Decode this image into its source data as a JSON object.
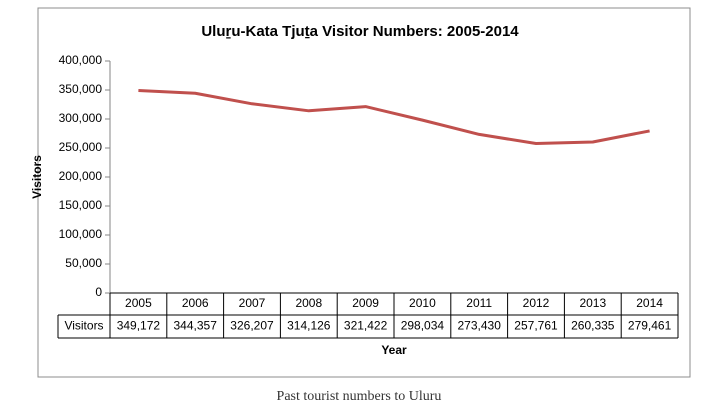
{
  "chart_data": {
    "type": "line",
    "title": "Uluṟu-Kata Tjuṯa Visitor Numbers: 2005-2014",
    "x_label": "Year",
    "y_label": "Visitors",
    "categories": [
      "2005",
      "2006",
      "2007",
      "2008",
      "2009",
      "2010",
      "2011",
      "2012",
      "2013",
      "2014"
    ],
    "series": [
      {
        "name": "Visitors",
        "color": "#c0504d",
        "values": [
          349172,
          344357,
          326207,
          314126,
          321422,
          298034,
          273430,
          257761,
          260335,
          279461
        ],
        "value_labels": [
          "349,172",
          "344,357",
          "326,207",
          "314,126",
          "321,422",
          "298,034",
          "273,430",
          "257,761",
          "260,335",
          "279,461"
        ]
      }
    ],
    "ylim": [
      0,
      400000
    ],
    "yticks": [
      0,
      {
        "value": 50000,
        "label": "50,000"
      },
      {
        "value": 100000,
        "label": "100,000"
      },
      {
        "value": 150000,
        "label": "150,000"
      },
      {
        "value": 200000,
        "label": "200,000"
      },
      {
        "value": 250000,
        "label": "250,000"
      },
      {
        "value": 300000,
        "label": "300,000"
      },
      {
        "value": 350000,
        "label": "350,000"
      },
      {
        "value": 400000,
        "label": "400,000"
      }
    ],
    "grid": false,
    "caption": "Past tourist numbers to Uluru"
  }
}
